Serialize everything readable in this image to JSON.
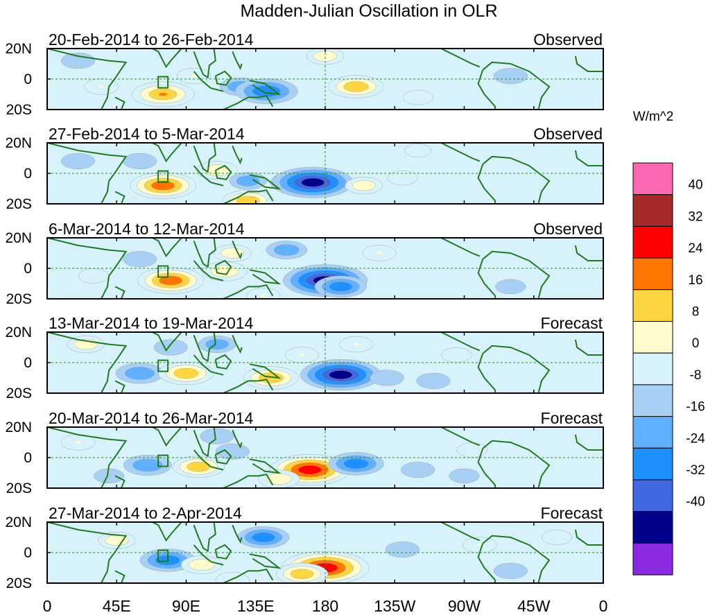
{
  "chart_data": {
    "type": "heatmap",
    "title": "Madden-Julian Oscillation in OLR",
    "units": "W/m^2",
    "x_ticks": [
      "0",
      "45E",
      "90E",
      "135E",
      "180",
      "135W",
      "90W",
      "45W",
      "0"
    ],
    "x_tick_lon": [
      0,
      45,
      90,
      135,
      180,
      225,
      270,
      315,
      360
    ],
    "y_ticks": [
      "20N",
      "0",
      "20S"
    ],
    "y_tick_lat": [
      20,
      0,
      -20
    ],
    "xlim": [
      0,
      360
    ],
    "ylim": [
      -20,
      20
    ],
    "legend": {
      "colors": [
        "#8a2be2",
        "#00008b",
        "#4169e1",
        "#1e90ff",
        "#60b0ff",
        "#a8d0f5",
        "#d8f2fb",
        "#fffbcc",
        "#fdd541",
        "#ff7500",
        "#ff0000",
        "#a52a2a",
        "#ff69b4"
      ],
      "labels": [
        "-40",
        "-32",
        "-24",
        "-16",
        "-8",
        "0",
        "8",
        "16",
        "24",
        "32",
        "40"
      ]
    },
    "panels": [
      {
        "period": "20-Feb-2014 to 26-Feb-2014",
        "status": "Observed",
        "anomalies": [
          {
            "lon": 35,
            "lat": -5,
            "value": 8
          },
          {
            "lon": 75,
            "lat": -10,
            "value": 24
          },
          {
            "lon": 95,
            "lat": 2,
            "value": 8
          },
          {
            "lon": 125,
            "lat": -5,
            "value": -12
          },
          {
            "lon": 142,
            "lat": -8,
            "value": -24
          },
          {
            "lon": 200,
            "lat": -5,
            "value": 20
          },
          {
            "lon": 180,
            "lat": 15,
            "value": 10
          },
          {
            "lon": 20,
            "lat": 12,
            "value": -8
          },
          {
            "lon": 300,
            "lat": 2,
            "value": -8
          },
          {
            "lon": 240,
            "lat": -12,
            "value": 6
          }
        ]
      },
      {
        "period": "27-Feb-2014 to 5-Mar-2014",
        "status": "Observed",
        "anomalies": [
          {
            "lon": 75,
            "lat": -8,
            "value": 26
          },
          {
            "lon": 110,
            "lat": 2,
            "value": 12
          },
          {
            "lon": 130,
            "lat": -5,
            "value": -10
          },
          {
            "lon": 165,
            "lat": -6,
            "value": -24
          },
          {
            "lon": 172,
            "lat": -6,
            "value": -34
          },
          {
            "lon": 205,
            "lat": -8,
            "value": 10
          },
          {
            "lon": 230,
            "lat": -3,
            "value": 6
          },
          {
            "lon": 60,
            "lat": 8,
            "value": -8
          },
          {
            "lon": 20,
            "lat": 8,
            "value": -8
          },
          {
            "lon": 130,
            "lat": -18,
            "value": 18
          },
          {
            "lon": 240,
            "lat": 15,
            "value": 4
          }
        ]
      },
      {
        "period": "6-Mar-2014 to 12-Mar-2014",
        "status": "Observed",
        "anomalies": [
          {
            "lon": 80,
            "lat": -8,
            "value": 26
          },
          {
            "lon": 115,
            "lat": -2,
            "value": 14
          },
          {
            "lon": 120,
            "lat": 10,
            "value": 10
          },
          {
            "lon": 155,
            "lat": 12,
            "value": -12
          },
          {
            "lon": 180,
            "lat": -8,
            "value": -36
          },
          {
            "lon": 190,
            "lat": -12,
            "value": -18
          },
          {
            "lon": 215,
            "lat": 10,
            "value": 8
          },
          {
            "lon": 60,
            "lat": 6,
            "value": -8
          },
          {
            "lon": 30,
            "lat": -5,
            "value": 6
          },
          {
            "lon": 140,
            "lat": -18,
            "value": 8
          },
          {
            "lon": 300,
            "lat": -12,
            "value": -6
          }
        ]
      },
      {
        "period": "13-Mar-2014 to 19-Mar-2014",
        "status": "Forecast",
        "anomalies": [
          {
            "lon": 60,
            "lat": -7,
            "value": -16
          },
          {
            "lon": 90,
            "lat": -7,
            "value": 20
          },
          {
            "lon": 145,
            "lat": -10,
            "value": 20
          },
          {
            "lon": 165,
            "lat": 5,
            "value": 8
          },
          {
            "lon": 190,
            "lat": -8,
            "value": -34
          },
          {
            "lon": 220,
            "lat": -10,
            "value": -8
          },
          {
            "lon": 250,
            "lat": -12,
            "value": -8
          },
          {
            "lon": 200,
            "lat": 12,
            "value": 8
          },
          {
            "lon": 80,
            "lat": 10,
            "value": -8
          },
          {
            "lon": 110,
            "lat": 12,
            "value": -10
          },
          {
            "lon": 25,
            "lat": 12,
            "value": 10
          },
          {
            "lon": 265,
            "lat": 5,
            "value": 6
          }
        ]
      },
      {
        "period": "20-Mar-2014 to 26-Mar-2014",
        "status": "Forecast",
        "anomalies": [
          {
            "lon": 65,
            "lat": -5,
            "value": -16
          },
          {
            "lon": 98,
            "lat": -6,
            "value": 18
          },
          {
            "lon": 120,
            "lat": 4,
            "value": -8
          },
          {
            "lon": 170,
            "lat": -8,
            "value": 34
          },
          {
            "lon": 150,
            "lat": -14,
            "value": 12
          },
          {
            "lon": 200,
            "lat": -4,
            "value": -20
          },
          {
            "lon": 240,
            "lat": -8,
            "value": -8
          },
          {
            "lon": 270,
            "lat": -12,
            "value": -6
          },
          {
            "lon": 20,
            "lat": 10,
            "value": 8
          },
          {
            "lon": 110,
            "lat": 14,
            "value": -8
          },
          {
            "lon": 275,
            "lat": 5,
            "value": 6
          },
          {
            "lon": 40,
            "lat": -12,
            "value": -6
          }
        ]
      },
      {
        "period": "27-Mar-2014 to 2-Apr-2014",
        "status": "Forecast",
        "anomalies": [
          {
            "lon": 78,
            "lat": -5,
            "value": -20
          },
          {
            "lon": 100,
            "lat": -8,
            "value": 12
          },
          {
            "lon": 140,
            "lat": 10,
            "value": -18
          },
          {
            "lon": 180,
            "lat": -10,
            "value": 38
          },
          {
            "lon": 165,
            "lat": -14,
            "value": 18
          },
          {
            "lon": 230,
            "lat": 2,
            "value": -8
          },
          {
            "lon": 300,
            "lat": -12,
            "value": -8
          },
          {
            "lon": 45,
            "lat": 8,
            "value": 10
          },
          {
            "lon": 280,
            "lat": 5,
            "value": 8
          },
          {
            "lon": 330,
            "lat": 10,
            "value": 6
          },
          {
            "lon": 120,
            "lat": -18,
            "value": 8
          }
        ]
      }
    ]
  }
}
